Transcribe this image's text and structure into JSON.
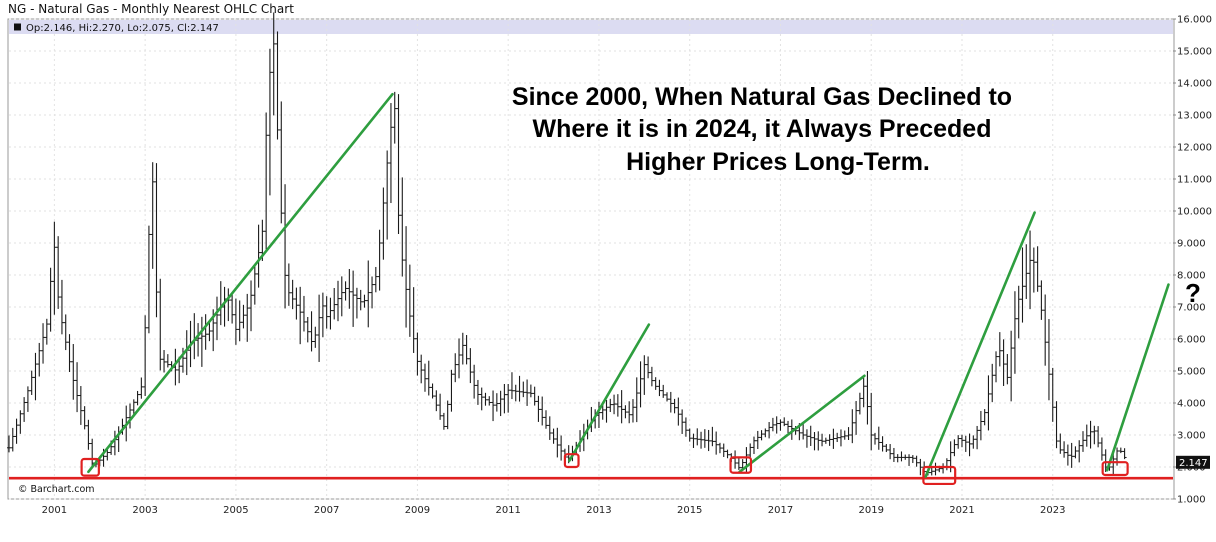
{
  "header": {
    "title": "NG - Natural Gas - Monthly Nearest OHLC Chart",
    "ohlc_readout": "Op:2.146, Hi:2.270, Lo:2.075, Cl:2.147"
  },
  "annotation": {
    "lines": [
      "Since 2000, When Natural Gas Declined to",
      "Where it is in 2024, it Always Preceded",
      "Higher Prices Long-Term."
    ],
    "question_mark": "?"
  },
  "credit": "© Barchart.com",
  "last_price_label": "2.147",
  "colors": {
    "bars": "#1a1a1a",
    "trend_lines": "#2e9e3f",
    "support_line": "#e02020",
    "boxes": "#e02020",
    "info_band": "#dcdcf2",
    "last_label_bg": "#111111"
  },
  "chart_data": {
    "type": "ohlc",
    "title": "NG - Natural Gas - Monthly Nearest OHLC Chart",
    "x_axis": {
      "type": "time",
      "range": [
        2000.0,
        2025.65
      ],
      "tick_labels": [
        "2001",
        "2003",
        "2005",
        "2007",
        "2009",
        "2011",
        "2013",
        "2015",
        "2017",
        "2019",
        "2021",
        "2023"
      ]
    },
    "y_axis": {
      "side": "right",
      "range": [
        1.0,
        16.0
      ],
      "tick_labels": [
        "1.000",
        "2.000",
        "3.000",
        "4.000",
        "5.000",
        "6.000",
        "7.000",
        "8.000",
        "9.000",
        "10.000",
        "11.000",
        "12.000",
        "13.000",
        "14.000",
        "15.000",
        "16.000"
      ]
    },
    "grid": true,
    "series": [
      {
        "approx_close_path": [
          [
            2000.0,
            2.6
          ],
          [
            2000.4,
            4.3
          ],
          [
            2000.9,
            6.8
          ],
          [
            2000.95,
            9.8
          ],
          [
            2001.1,
            7.0
          ],
          [
            2001.4,
            4.8
          ],
          [
            2001.7,
            3.1
          ],
          [
            2001.85,
            2.0
          ],
          [
            2002.2,
            2.5
          ],
          [
            2002.5,
            3.3
          ],
          [
            2002.95,
            4.6
          ],
          [
            2003.15,
            11.6
          ],
          [
            2003.3,
            5.4
          ],
          [
            2003.7,
            5.0
          ],
          [
            2004.0,
            5.9
          ],
          [
            2004.4,
            6.2
          ],
          [
            2004.8,
            7.4
          ],
          [
            2005.0,
            6.3
          ],
          [
            2005.3,
            7.1
          ],
          [
            2005.6,
            9.5
          ],
          [
            2005.7,
            13.8
          ],
          [
            2005.85,
            15.4
          ],
          [
            2005.95,
            11.1
          ],
          [
            2006.1,
            7.6
          ],
          [
            2006.4,
            6.9
          ],
          [
            2006.7,
            5.8
          ],
          [
            2006.9,
            7.1
          ],
          [
            2007.0,
            6.7
          ],
          [
            2007.4,
            7.6
          ],
          [
            2007.8,
            7.1
          ],
          [
            2008.1,
            8.0
          ],
          [
            2008.4,
            12.5
          ],
          [
            2008.5,
            13.2
          ],
          [
            2008.6,
            9.2
          ],
          [
            2008.8,
            7.0
          ],
          [
            2009.0,
            5.3
          ],
          [
            2009.4,
            4.0
          ],
          [
            2009.6,
            3.2
          ],
          [
            2009.75,
            4.9
          ],
          [
            2010.0,
            5.8
          ],
          [
            2010.3,
            4.3
          ],
          [
            2010.7,
            3.9
          ],
          [
            2011.0,
            4.4
          ],
          [
            2011.5,
            4.3
          ],
          [
            2011.9,
            3.1
          ],
          [
            2012.3,
            2.2
          ],
          [
            2012.6,
            2.9
          ],
          [
            2012.9,
            3.6
          ],
          [
            2013.3,
            4.0
          ],
          [
            2013.7,
            3.6
          ],
          [
            2014.0,
            5.2
          ],
          [
            2014.2,
            4.6
          ],
          [
            2014.7,
            3.8
          ],
          [
            2015.0,
            2.9
          ],
          [
            2015.5,
            2.8
          ],
          [
            2015.9,
            2.3
          ],
          [
            2016.1,
            1.95
          ],
          [
            2016.4,
            2.8
          ],
          [
            2016.8,
            3.3
          ],
          [
            2017.0,
            3.4
          ],
          [
            2017.5,
            3.0
          ],
          [
            2017.9,
            2.8
          ],
          [
            2018.5,
            3.0
          ],
          [
            2018.85,
            4.6
          ],
          [
            2019.0,
            3.0
          ],
          [
            2019.5,
            2.3
          ],
          [
            2019.9,
            2.3
          ],
          [
            2020.2,
            1.8
          ],
          [
            2020.6,
            2.0
          ],
          [
            2020.9,
            2.9
          ],
          [
            2021.2,
            2.7
          ],
          [
            2021.5,
            3.7
          ],
          [
            2021.8,
            5.8
          ],
          [
            2022.0,
            4.8
          ],
          [
            2022.2,
            7.0
          ],
          [
            2022.55,
            8.7
          ],
          [
            2022.75,
            6.9
          ],
          [
            2022.95,
            4.5
          ],
          [
            2023.1,
            2.6
          ],
          [
            2023.4,
            2.3
          ],
          [
            2023.7,
            2.9
          ],
          [
            2023.9,
            3.2
          ],
          [
            2024.2,
            1.85
          ],
          [
            2024.45,
            2.6
          ],
          [
            2024.65,
            2.147
          ]
        ]
      }
    ],
    "overlays": {
      "support_level": 1.65,
      "trend_lines": [
        {
          "from": [
            2001.75,
            1.85
          ],
          "to": [
            2008.45,
            13.65
          ]
        },
        {
          "from": [
            2012.35,
            2.2
          ],
          "to": [
            2014.1,
            6.45
          ]
        },
        {
          "from": [
            2016.1,
            1.85
          ],
          "to": [
            2018.85,
            4.85
          ]
        },
        {
          "from": [
            2020.2,
            1.7
          ],
          "to": [
            2022.6,
            9.95
          ]
        },
        {
          "from": [
            2024.2,
            1.9
          ],
          "to": [
            2025.55,
            7.7
          ]
        }
      ],
      "highlight_boxes": [
        {
          "from": [
            2001.6,
            1.73
          ],
          "to": [
            2001.98,
            2.25
          ]
        },
        {
          "from": [
            2012.25,
            2.0
          ],
          "to": [
            2012.55,
            2.4
          ]
        },
        {
          "from": [
            2015.9,
            1.82
          ],
          "to": [
            2016.35,
            2.3
          ]
        },
        {
          "from": [
            2020.15,
            1.47
          ],
          "to": [
            2020.85,
            2.0
          ]
        },
        {
          "from": [
            2024.1,
            1.75
          ],
          "to": [
            2024.65,
            2.15
          ]
        }
      ]
    },
    "last_value": 2.147
  }
}
